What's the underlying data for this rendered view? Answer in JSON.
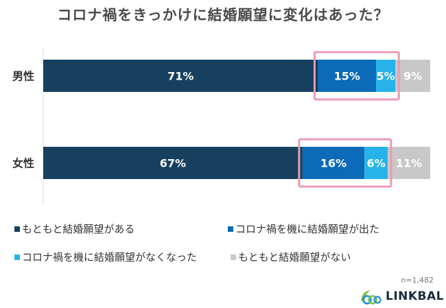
{
  "chart_data": {
    "type": "bar",
    "orientation": "horizontal",
    "stacked": true,
    "title": "コロナ禍をきっかけに結婚願望に変化はあった？",
    "categories": [
      "男性",
      "女性"
    ],
    "series": [
      {
        "name": "もともと結婚願望がある",
        "values": [
          71,
          67
        ],
        "labels": [
          "71%",
          "67%"
        ],
        "color": "#16405e"
      },
      {
        "name": "コロナ禍を機に結婚願望が出た",
        "values": [
          15,
          16
        ],
        "labels": [
          "15%",
          "16%"
        ],
        "color": "#0b6bb8"
      },
      {
        "name": "コロナ禍を機に結婚願望がなくなった",
        "values": [
          5,
          6
        ],
        "labels": [
          "5%",
          "6%"
        ],
        "color": "#27b3ea"
      },
      {
        "name": "もともと結婚願望がない",
        "values": [
          9,
          11
        ],
        "labels": [
          "9%",
          "11%"
        ],
        "color": "#c8c8c8"
      }
    ],
    "xlim": [
      0,
      100
    ],
    "grid": false,
    "legend_position": "bottom",
    "highlight_color": "#ec9bb0",
    "highlighted_series": [
      1,
      2
    ]
  },
  "note": "n=1,482",
  "logo": {
    "text": "LINKBAL",
    "icon": "linkbal-logo-icon"
  }
}
